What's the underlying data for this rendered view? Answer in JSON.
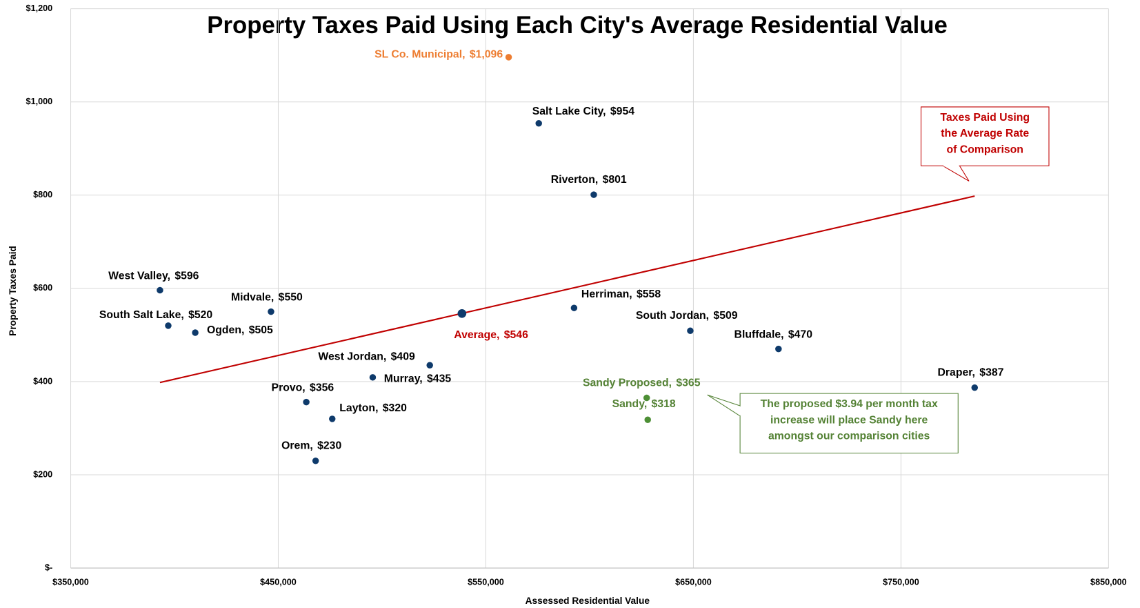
{
  "chart_data": {
    "type": "scatter",
    "title": "Property Taxes Paid Using Each City's Average Residential Value",
    "x_label": "Assessed Residential Value",
    "y_label": "Property Taxes Paid",
    "xlim": [
      350000,
      850000
    ],
    "ylim": [
      0,
      1200
    ],
    "xticks": [
      {
        "value": 350000,
        "label": "$350,000"
      },
      {
        "value": 450000,
        "label": "$450,000"
      },
      {
        "value": 550000,
        "label": "$550,000"
      },
      {
        "value": 650000,
        "label": "$650,000"
      },
      {
        "value": 750000,
        "label": "$750,000"
      },
      {
        "value": 850000,
        "label": "$850,000"
      }
    ],
    "yticks": [
      {
        "value": 0,
        "label": "$-"
      },
      {
        "value": 200,
        "label": "$200"
      },
      {
        "value": 400,
        "label": "$400"
      },
      {
        "value": 600,
        "label": "$600"
      },
      {
        "value": 800,
        "label": "$800"
      },
      {
        "value": 1000,
        "label": "$1,000"
      },
      {
        "value": 1200,
        "label": "$1,200"
      }
    ],
    "grid": true,
    "labels": [
      "SL Co. Municipal,",
      "Salt Lake City,",
      "Riverton,",
      "West Valley,",
      "South Salt Lake,",
      "Ogden,",
      "Midvale,",
      "Average,",
      "Herriman,",
      "South Jordan,",
      "Bluffdale,",
      "West Jordan,",
      "Murray,",
      "Provo,",
      "Layton,",
      "Orem,",
      "Sandy Proposed,",
      "Sandy,",
      "Draper,"
    ],
    "x": [
      561000,
      575500,
      602000,
      393000,
      397000,
      410000,
      446500,
      538500,
      592500,
      648500,
      691000,
      495500,
      523000,
      463500,
      476000,
      468000,
      627500,
      628000,
      785500
    ],
    "values": [
      1096,
      954,
      801,
      596,
      520,
      505,
      550,
      546,
      558,
      509,
      470,
      409,
      435,
      356,
      320,
      230,
      365,
      318,
      387
    ],
    "value_labels": [
      "$1,096",
      "$954",
      "$801",
      "$596",
      "$520",
      "$505",
      "$550",
      "$546",
      "$558",
      "$509",
      "$470",
      "$409",
      "$435",
      "$356",
      "$320",
      "$230",
      "$365",
      "$318",
      "$387"
    ],
    "colors": [
      "#ed7d31",
      "#0e3a6b",
      "#0e3a6b",
      "#0e3a6b",
      "#0e3a6b",
      "#0e3a6b",
      "#0e3a6b",
      "#0e3a6b",
      "#0e3a6b",
      "#0e3a6b",
      "#0e3a6b",
      "#0e3a6b",
      "#0e3a6b",
      "#0e3a6b",
      "#0e3a6b",
      "#0e3a6b",
      "#4d8f35",
      "#4d8f35",
      "#0e3a6b"
    ],
    "label_colors": [
      "#ed7d31",
      "#000000",
      "#000000",
      "#000000",
      "#000000",
      "#000000",
      "#000000",
      "#c00000",
      "#000000",
      "#000000",
      "#000000",
      "#000000",
      "#000000",
      "#000000",
      "#000000",
      "#000000",
      "#548235",
      "#548235",
      "#000000"
    ],
    "trend_line": {
      "x": [
        393000,
        785500
      ],
      "values": [
        398,
        798
      ],
      "color": "#c00000"
    },
    "annotations": [
      {
        "lines": [
          "Taxes Paid Using",
          "the Average Rate",
          "of Comparison"
        ],
        "color": "#c00000"
      },
      {
        "lines": [
          "The proposed $3.94 per month tax",
          "increase will place Sandy here",
          "amongst our comparison cities"
        ],
        "color": "#548235"
      }
    ]
  }
}
